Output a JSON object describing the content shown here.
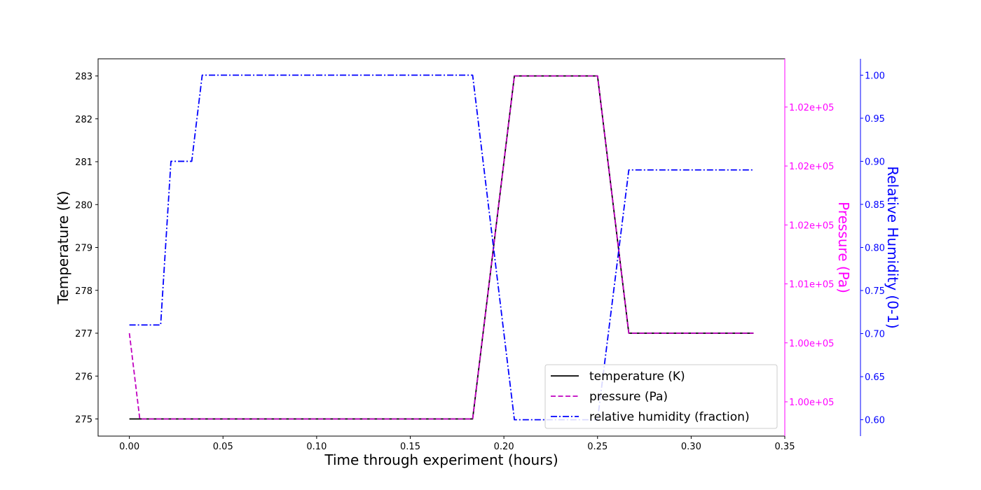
{
  "chart_data": {
    "type": "line",
    "xlabel": "Time through experiment (hours)",
    "ylabel_left": "Temperature (K)",
    "ylabel_right_1": "Pressure (Pa)",
    "ylabel_right_2": "Relative Humidity (0-1)",
    "xlim": [
      -0.0167,
      0.35
    ],
    "x_ticks": [
      "0.00",
      "0.05",
      "0.10",
      "0.15",
      "0.20",
      "0.25",
      "0.30",
      "0.35"
    ],
    "x_tick_values": [
      0,
      0.05,
      0.1,
      0.15,
      0.2,
      0.25,
      0.3,
      0.35
    ],
    "left_axis": {
      "ylim": [
        274.6,
        283.4
      ],
      "ticks": [
        "275",
        "276",
        "277",
        "278",
        "279",
        "280",
        "281",
        "282",
        "283"
      ],
      "tick_values": [
        275,
        276,
        277,
        278,
        279,
        280,
        281,
        282,
        283
      ],
      "color": "#000000"
    },
    "pressure_axis": {
      "ylim": [
        274.6,
        283.4
      ],
      "ticks": [
        "1.00e+05",
        "1.00e+05",
        "1.01e+05",
        "1.02e+05",
        "1.02e+05",
        "1.02e+05"
      ],
      "tick_values": [
        275.4,
        276.775,
        278.15,
        279.525,
        280.9,
        282.275
      ],
      "color": "#ff00ff"
    },
    "humidity_axis": {
      "ylim": [
        0.581,
        1.019
      ],
      "ticks": [
        "0.60",
        "0.65",
        "0.70",
        "0.75",
        "0.80",
        "0.85",
        "0.90",
        "0.95",
        "1.00"
      ],
      "tick_values": [
        0.6,
        0.65,
        0.7,
        0.75,
        0.8,
        0.85,
        0.9,
        0.95,
        1.0
      ],
      "color": "#0000ff"
    },
    "series": [
      {
        "name": "temperature (K)",
        "axis": "left",
        "color": "#000000",
        "dash": "solid",
        "x": [
          0,
          0.00556,
          0.1833,
          0.2056,
          0.25,
          0.2667,
          0.3333
        ],
        "y": [
          275,
          275,
          275,
          283,
          283,
          277,
          277
        ]
      },
      {
        "name": "pressure (Pa)",
        "axis": "left",
        "color": "#c000c0",
        "dash": "dashed",
        "x": [
          0,
          0.00556,
          0.1833,
          0.2056,
          0.25,
          0.2667,
          0.3333
        ],
        "y": [
          277,
          275,
          275,
          283,
          283,
          277,
          277
        ]
      },
      {
        "name": "relative humidity (fraction)",
        "axis": "humidity",
        "color": "#0000ff",
        "dash": "dashdot",
        "x": [
          0,
          0.0167,
          0.0222,
          0.0333,
          0.0389,
          0.1833,
          0.2056,
          0.25,
          0.2667,
          0.3333
        ],
        "y": [
          0.71,
          0.71,
          0.9,
          0.9,
          1.0,
          1.0,
          0.6,
          0.6,
          0.89,
          0.89
        ]
      }
    ],
    "legend_position": "lower right",
    "grid": false
  }
}
